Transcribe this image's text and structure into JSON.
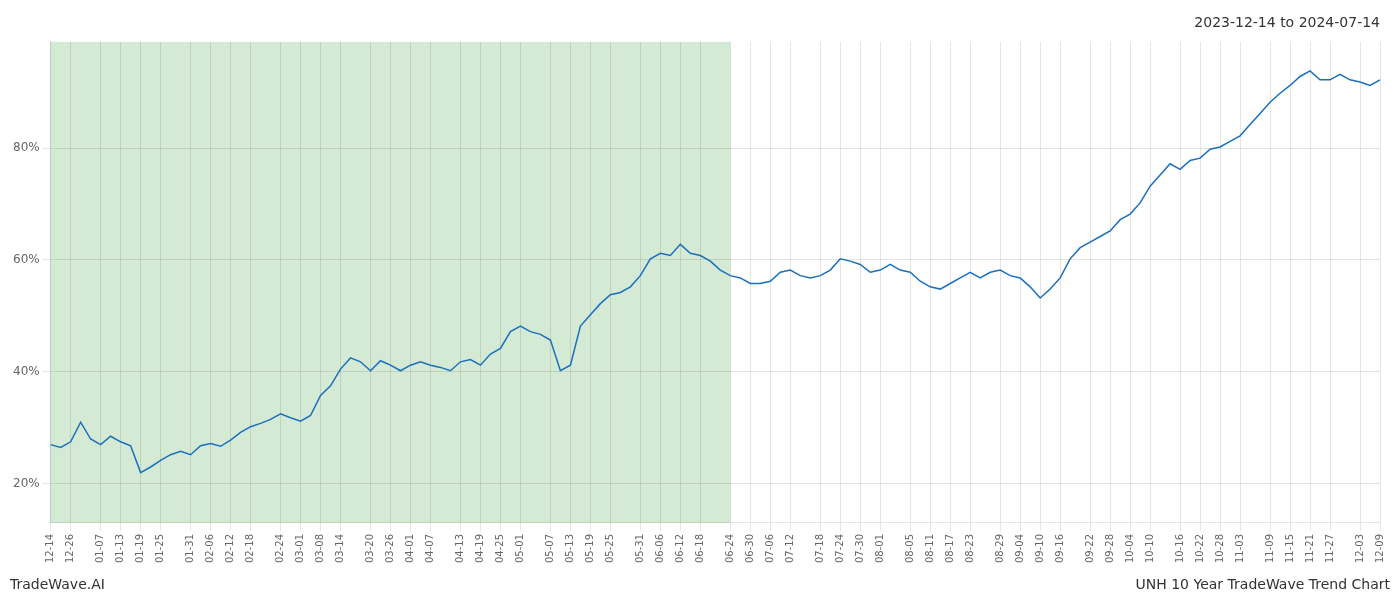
{
  "chart_data": {
    "type": "line",
    "title": "2023-12-14 to 2024-07-14",
    "annotations": [
      "TradeWave.AI",
      "UNH 10 Year TradeWave Trend Chart"
    ],
    "color": "#1a6fbe",
    "marker": "none",
    "grid": true,
    "shade": {
      "from": "12-14",
      "to": "06-24",
      "color": "#d4ead4"
    },
    "ylim": [
      0.13,
      0.99
    ],
    "yticks": [
      {
        "value": 0.2,
        "label": "20%"
      },
      {
        "value": 0.4,
        "label": "40%"
      },
      {
        "value": 0.6,
        "label": "60%"
      },
      {
        "value": 0.8,
        "label": "80%"
      }
    ],
    "categories": [
      "12-14",
      null,
      "12-26",
      null,
      null,
      "01-07",
      null,
      "01-13",
      null,
      "01-19",
      null,
      "01-25",
      null,
      null,
      "01-31",
      null,
      "02-06",
      null,
      "02-12",
      null,
      "02-18",
      null,
      null,
      "02-24",
      null,
      "03-01",
      null,
      "03-08",
      null,
      "03-14",
      null,
      null,
      "03-20",
      null,
      "03-26",
      null,
      "04-01",
      null,
      "04-07",
      null,
      null,
      "04-13",
      null,
      "04-19",
      null,
      "04-25",
      null,
      "05-01",
      null,
      null,
      "05-07",
      null,
      "05-13",
      null,
      "05-19",
      null,
      "05-25",
      null,
      null,
      "05-31",
      null,
      "06-06",
      null,
      "06-12",
      null,
      "06-18",
      null,
      null,
      "06-24",
      null,
      "06-30",
      null,
      "07-06",
      null,
      "07-12",
      null,
      null,
      "07-18",
      null,
      "07-24",
      null,
      "07-30",
      null,
      "08-01",
      null,
      null,
      "08-05",
      null,
      "08-11",
      null,
      "08-17",
      null,
      "08-23",
      null,
      null,
      "08-29",
      null,
      "09-04",
      null,
      "09-10",
      null,
      "09-16",
      null,
      null,
      "09-22",
      null,
      "09-28",
      null,
      "10-04",
      null,
      "10-10",
      null,
      null,
      "10-16",
      null,
      "10-22",
      null,
      "10-28",
      null,
      "11-03",
      null,
      null,
      "11-09",
      null,
      "11-15",
      null,
      "11-21",
      null,
      "11-27",
      null,
      null,
      "12-03",
      null,
      "12-09"
    ],
    "values": [
      0.27,
      0.265,
      0.275,
      0.31,
      0.28,
      0.27,
      0.285,
      0.275,
      0.268,
      0.22,
      0.23,
      0.242,
      0.252,
      0.258,
      0.252,
      0.268,
      0.272,
      0.267,
      0.278,
      0.292,
      0.302,
      0.308,
      0.315,
      0.325,
      0.318,
      0.312,
      0.322,
      0.358,
      0.375,
      0.405,
      0.425,
      0.418,
      0.402,
      0.42,
      0.412,
      0.402,
      0.412,
      0.418,
      0.412,
      0.408,
      0.402,
      0.418,
      0.422,
      0.412,
      0.432,
      0.442,
      0.472,
      0.482,
      0.472,
      0.467,
      0.457,
      0.402,
      0.412,
      0.482,
      0.502,
      0.522,
      0.538,
      0.542,
      0.552,
      0.572,
      0.602,
      0.612,
      0.608,
      0.628,
      0.612,
      0.608,
      0.598,
      0.582,
      0.572,
      0.568,
      0.558,
      0.558,
      0.562,
      0.578,
      0.582,
      0.572,
      0.568,
      0.572,
      0.582,
      0.602,
      0.598,
      0.592,
      0.578,
      0.582,
      0.592,
      0.582,
      0.578,
      0.562,
      0.552,
      0.548,
      0.558,
      0.568,
      0.578,
      0.568,
      0.578,
      0.582,
      0.572,
      0.568,
      0.552,
      0.532,
      0.548,
      0.568,
      0.602,
      0.622,
      0.632,
      0.642,
      0.652,
      0.672,
      0.682,
      0.702,
      0.732,
      0.752,
      0.772,
      0.762,
      0.778,
      0.782,
      0.798,
      0.802,
      0.812,
      0.822,
      0.842,
      0.862,
      0.882,
      0.898,
      0.912,
      0.928,
      0.938,
      0.922,
      0.922,
      0.932,
      0.922,
      0.918,
      0.912,
      0.922
    ]
  }
}
